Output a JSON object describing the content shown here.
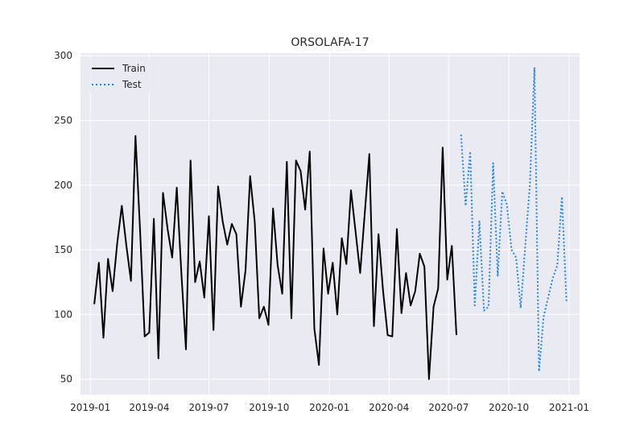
{
  "chart_data": {
    "type": "line",
    "title": "ORSOLAFA-17",
    "xlabel": "",
    "ylabel": "",
    "grid": true,
    "legend_position": "top-left",
    "xlim": [
      "2018-12-17",
      "2021-01-17"
    ],
    "ylim": [
      38,
      302
    ],
    "x_ticks": [
      {
        "date": "2019-01-01",
        "label": "2019-01"
      },
      {
        "date": "2019-04-01",
        "label": "2019-04"
      },
      {
        "date": "2019-07-01",
        "label": "2019-07"
      },
      {
        "date": "2019-10-01",
        "label": "2019-10"
      },
      {
        "date": "2020-01-01",
        "label": "2020-01"
      },
      {
        "date": "2020-04-01",
        "label": "2020-04"
      },
      {
        "date": "2020-07-01",
        "label": "2020-07"
      },
      {
        "date": "2020-10-01",
        "label": "2020-10"
      },
      {
        "date": "2021-01-01",
        "label": "2021-01"
      }
    ],
    "y_ticks": [
      50,
      100,
      150,
      200,
      250,
      300
    ],
    "series": [
      {
        "name": "Train",
        "color": "#000000",
        "style": "solid",
        "points": [
          [
            "2019-01-07",
            108
          ],
          [
            "2019-01-14",
            140
          ],
          [
            "2019-01-21",
            82
          ],
          [
            "2019-01-28",
            143
          ],
          [
            "2019-02-04",
            118
          ],
          [
            "2019-02-11",
            155
          ],
          [
            "2019-02-18",
            184
          ],
          [
            "2019-02-25",
            153
          ],
          [
            "2019-03-04",
            126
          ],
          [
            "2019-03-11",
            238
          ],
          [
            "2019-03-18",
            165
          ],
          [
            "2019-03-25",
            83
          ],
          [
            "2019-04-01",
            86
          ],
          [
            "2019-04-08",
            174
          ],
          [
            "2019-04-15",
            66
          ],
          [
            "2019-04-22",
            194
          ],
          [
            "2019-04-29",
            166
          ],
          [
            "2019-05-06",
            144
          ],
          [
            "2019-05-13",
            198
          ],
          [
            "2019-05-20",
            132
          ],
          [
            "2019-05-27",
            73
          ],
          [
            "2019-06-03",
            219
          ],
          [
            "2019-06-10",
            125
          ],
          [
            "2019-06-17",
            141
          ],
          [
            "2019-06-24",
            113
          ],
          [
            "2019-07-01",
            176
          ],
          [
            "2019-07-08",
            88
          ],
          [
            "2019-07-15",
            199
          ],
          [
            "2019-07-22",
            172
          ],
          [
            "2019-07-29",
            154
          ],
          [
            "2019-08-05",
            170
          ],
          [
            "2019-08-12",
            162
          ],
          [
            "2019-08-19",
            106
          ],
          [
            "2019-08-26",
            134
          ],
          [
            "2019-09-02",
            207
          ],
          [
            "2019-09-09",
            172
          ],
          [
            "2019-09-16",
            97
          ],
          [
            "2019-09-23",
            106
          ],
          [
            "2019-09-30",
            92
          ],
          [
            "2019-10-07",
            182
          ],
          [
            "2019-10-14",
            138
          ],
          [
            "2019-10-21",
            116
          ],
          [
            "2019-10-28",
            218
          ],
          [
            "2019-11-04",
            97
          ],
          [
            "2019-11-11",
            219
          ],
          [
            "2019-11-18",
            211
          ],
          [
            "2019-11-25",
            181
          ],
          [
            "2019-12-02",
            226
          ],
          [
            "2019-12-09",
            89
          ],
          [
            "2019-12-16",
            61
          ],
          [
            "2019-12-23",
            151
          ],
          [
            "2019-12-30",
            116
          ],
          [
            "2020-01-06",
            140
          ],
          [
            "2020-01-13",
            100
          ],
          [
            "2020-01-20",
            159
          ],
          [
            "2020-01-27",
            139
          ],
          [
            "2020-02-03",
            196
          ],
          [
            "2020-02-10",
            164
          ],
          [
            "2020-02-17",
            132
          ],
          [
            "2020-02-24",
            178
          ],
          [
            "2020-03-02",
            224
          ],
          [
            "2020-03-09",
            91
          ],
          [
            "2020-03-16",
            162
          ],
          [
            "2020-03-23",
            118
          ],
          [
            "2020-03-30",
            84
          ],
          [
            "2020-04-06",
            83
          ],
          [
            "2020-04-13",
            166
          ],
          [
            "2020-04-20",
            101
          ],
          [
            "2020-04-27",
            132
          ],
          [
            "2020-05-04",
            107
          ],
          [
            "2020-05-11",
            118
          ],
          [
            "2020-05-18",
            147
          ],
          [
            "2020-05-25",
            137
          ],
          [
            "2020-06-01",
            50
          ],
          [
            "2020-06-08",
            106
          ],
          [
            "2020-06-15",
            120
          ],
          [
            "2020-06-22",
            229
          ],
          [
            "2020-06-29",
            127
          ],
          [
            "2020-07-06",
            153
          ],
          [
            "2020-07-13",
            84
          ]
        ]
      },
      {
        "name": "Test",
        "color": "#1e88e5",
        "style": "dotted",
        "points": [
          [
            "2020-07-20",
            239
          ],
          [
            "2020-07-27",
            184
          ],
          [
            "2020-08-03",
            226
          ],
          [
            "2020-08-10",
            107
          ],
          [
            "2020-08-17",
            172
          ],
          [
            "2020-08-24",
            103
          ],
          [
            "2020-08-31",
            106
          ],
          [
            "2020-09-07",
            217
          ],
          [
            "2020-09-14",
            130
          ],
          [
            "2020-09-21",
            195
          ],
          [
            "2020-09-28",
            185
          ],
          [
            "2020-10-05",
            150
          ],
          [
            "2020-10-12",
            144
          ],
          [
            "2020-10-19",
            105
          ],
          [
            "2020-10-26",
            153
          ],
          [
            "2020-11-02",
            200
          ],
          [
            "2020-11-09",
            291
          ],
          [
            "2020-11-16",
            56
          ],
          [
            "2020-11-23",
            98
          ],
          [
            "2020-11-30",
            113
          ],
          [
            "2020-12-07",
            128
          ],
          [
            "2020-12-14",
            138
          ],
          [
            "2020-12-21",
            191
          ],
          [
            "2020-12-28",
            110
          ]
        ]
      }
    ]
  }
}
